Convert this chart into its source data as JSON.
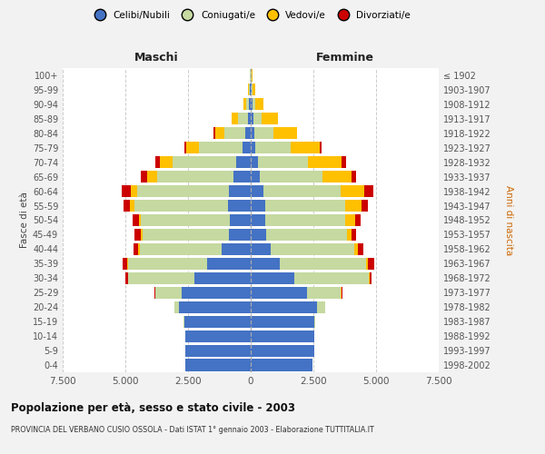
{
  "age_groups": [
    "0-4",
    "5-9",
    "10-14",
    "15-19",
    "20-24",
    "25-29",
    "30-34",
    "35-39",
    "40-44",
    "45-49",
    "50-54",
    "55-59",
    "60-64",
    "65-69",
    "70-74",
    "75-79",
    "80-84",
    "85-89",
    "90-94",
    "95-99",
    "100+"
  ],
  "birth_years": [
    "1998-2002",
    "1993-1997",
    "1988-1992",
    "1983-1987",
    "1978-1982",
    "1973-1977",
    "1968-1972",
    "1963-1967",
    "1958-1962",
    "1953-1957",
    "1948-1952",
    "1943-1947",
    "1938-1942",
    "1933-1937",
    "1928-1932",
    "1923-1927",
    "1918-1922",
    "1913-1917",
    "1908-1912",
    "1903-1907",
    "≤ 1902"
  ],
  "colors": {
    "celibi": "#4472c4",
    "coniugati": "#c5d9a0",
    "vedovi": "#ffc000",
    "divorziati": "#cc0000"
  },
  "maschi": {
    "celibi": [
      2600,
      2620,
      2600,
      2650,
      2850,
      2750,
      2250,
      1750,
      1150,
      860,
      820,
      900,
      870,
      700,
      580,
      330,
      200,
      110,
      55,
      20,
      10
    ],
    "coniugati": [
      0,
      0,
      0,
      15,
      180,
      1050,
      2650,
      3150,
      3280,
      3450,
      3550,
      3750,
      3650,
      3050,
      2550,
      1750,
      850,
      380,
      140,
      55,
      25
    ],
    "vedovi": [
      0,
      0,
      0,
      0,
      0,
      4,
      8,
      25,
      50,
      70,
      90,
      180,
      280,
      390,
      490,
      480,
      380,
      280,
      90,
      38,
      18
    ],
    "divorziati": [
      0,
      0,
      0,
      0,
      8,
      25,
      90,
      190,
      190,
      240,
      240,
      240,
      340,
      230,
      180,
      90,
      40,
      0,
      0,
      0,
      0
    ]
  },
  "femmine": {
    "celibi": [
      2450,
      2550,
      2550,
      2550,
      2650,
      2250,
      1750,
      1150,
      780,
      630,
      580,
      580,
      490,
      380,
      280,
      185,
      140,
      110,
      75,
      28,
      12
    ],
    "coniugati": [
      0,
      0,
      0,
      25,
      320,
      1350,
      2950,
      3450,
      3350,
      3200,
      3200,
      3200,
      3100,
      2500,
      2000,
      1420,
      750,
      320,
      110,
      45,
      18
    ],
    "vedovi": [
      0,
      0,
      0,
      0,
      4,
      18,
      35,
      75,
      140,
      185,
      380,
      650,
      950,
      1150,
      1350,
      1150,
      950,
      650,
      320,
      110,
      45
    ],
    "divorziati": [
      0,
      0,
      0,
      0,
      8,
      25,
      90,
      240,
      240,
      185,
      235,
      235,
      335,
      185,
      180,
      70,
      25,
      0,
      0,
      0,
      0
    ]
  },
  "xlim": 7500,
  "xtick_labels": [
    "7.500",
    "5.000",
    "2.500",
    "0",
    "2.500",
    "5.000",
    "7.500"
  ],
  "title1": "Popolazione per età, sesso e stato civile - 2003",
  "title2": "PROVINCIA DEL VERBANO CUSIO OSSOLA - Dati ISTAT 1° gennaio 2003 - Elaborazione TUTTITALIA.IT",
  "ylabel_left": "Fasce di età",
  "ylabel_right": "Anni di nascita",
  "label_maschi": "Maschi",
  "label_femmine": "Femmine",
  "legend_labels": [
    "Celibi/Nubili",
    "Coniugati/e",
    "Vedovi/e",
    "Divorziati/e"
  ],
  "bg_color": "#f2f2f2",
  "plot_bg": "#ffffff"
}
